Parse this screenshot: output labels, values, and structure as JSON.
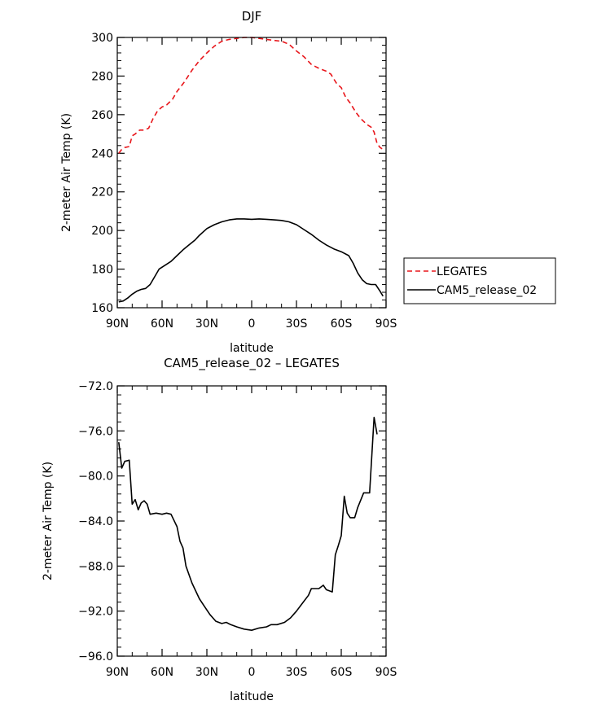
{
  "chart_data": [
    {
      "type": "line",
      "title": "DJF",
      "xlabel": "latitude",
      "ylabel": "2-meter Air Temp (K)",
      "xlim": [
        90,
        -90
      ],
      "ylim": [
        160,
        300
      ],
      "xticks": [
        {
          "value": 90,
          "label": "90N"
        },
        {
          "value": 60,
          "label": "60N"
        },
        {
          "value": 30,
          "label": "30N"
        },
        {
          "value": 0,
          "label": "0"
        },
        {
          "value": -30,
          "label": "30S"
        },
        {
          "value": -60,
          "label": "60S"
        },
        {
          "value": -90,
          "label": "90S"
        }
      ],
      "yticks": [
        {
          "value": 160,
          "label": "160"
        },
        {
          "value": 180,
          "label": "180"
        },
        {
          "value": 200,
          "label": "200"
        },
        {
          "value": 220,
          "label": "220"
        },
        {
          "value": 240,
          "label": "240"
        },
        {
          "value": 260,
          "label": "260"
        },
        {
          "value": 280,
          "label": "280"
        },
        {
          "value": 300,
          "label": "300"
        }
      ],
      "grid": false,
      "legend": "right",
      "series": [
        {
          "name": "LEGATES",
          "color": "#e8161b",
          "dash": "dashed",
          "points": [
            [
              89,
              240
            ],
            [
              87,
              242
            ],
            [
              85,
              243
            ],
            [
              82,
              243.5
            ],
            [
              80,
              249
            ],
            [
              78,
              250
            ],
            [
              75,
              252
            ],
            [
              72,
              252
            ],
            [
              69,
              253
            ],
            [
              66,
              258
            ],
            [
              63,
              262
            ],
            [
              60,
              264
            ],
            [
              57,
              265
            ],
            [
              53,
              268
            ],
            [
              50,
              272
            ],
            [
              45,
              277
            ],
            [
              40,
              283
            ],
            [
              35,
              288
            ],
            [
              30,
              292
            ],
            [
              25,
              295.5
            ],
            [
              20,
              298
            ],
            [
              15,
              299
            ],
            [
              10,
              299.5
            ],
            [
              5,
              300
            ],
            [
              0,
              300
            ],
            [
              -5,
              299.5
            ],
            [
              -10,
              299
            ],
            [
              -15,
              298.5
            ],
            [
              -20,
              298
            ],
            [
              -25,
              296.5
            ],
            [
              -30,
              293
            ],
            [
              -35,
              290
            ],
            [
              -40,
              286
            ],
            [
              -45,
              284
            ],
            [
              -50,
              282.5
            ],
            [
              -53,
              281
            ],
            [
              -57,
              276
            ],
            [
              -60,
              274
            ],
            [
              -63,
              269
            ],
            [
              -66,
              266
            ],
            [
              -70,
              261
            ],
            [
              -73,
              258
            ],
            [
              -77,
              255
            ],
            [
              -80,
              253.5
            ],
            [
              -82,
              251
            ],
            [
              -84,
              245
            ],
            [
              -86,
              243
            ],
            [
              -88,
              242
            ]
          ]
        },
        {
          "name": "CAM5_release_02",
          "color": "#000000",
          "dash": "solid",
          "points": [
            [
              89,
              163
            ],
            [
              86,
              163.5
            ],
            [
              83,
              165
            ],
            [
              80,
              167
            ],
            [
              77,
              168.5
            ],
            [
              74,
              169.5
            ],
            [
              71,
              170
            ],
            [
              68,
              172
            ],
            [
              65,
              176
            ],
            [
              62,
              180
            ],
            [
              58,
              182
            ],
            [
              54,
              184
            ],
            [
              50,
              187
            ],
            [
              46,
              190
            ],
            [
              42,
              192.5
            ],
            [
              38,
              195
            ],
            [
              35,
              197.5
            ],
            [
              30,
              201
            ],
            [
              25,
              203
            ],
            [
              20,
              204.5
            ],
            [
              15,
              205.5
            ],
            [
              10,
              206
            ],
            [
              5,
              206
            ],
            [
              0,
              205.8
            ],
            [
              -5,
              206
            ],
            [
              -10,
              205.8
            ],
            [
              -15,
              205.5
            ],
            [
              -20,
              205.2
            ],
            [
              -25,
              204.5
            ],
            [
              -30,
              203
            ],
            [
              -35,
              200.5
            ],
            [
              -40,
              198
            ],
            [
              -45,
              195
            ],
            [
              -50,
              192.5
            ],
            [
              -55,
              190.5
            ],
            [
              -60,
              189
            ],
            [
              -65,
              187
            ],
            [
              -68,
              183
            ],
            [
              -71,
              178
            ],
            [
              -74,
              174.5
            ],
            [
              -77,
              172.5
            ],
            [
              -80,
              172
            ],
            [
              -83,
              172
            ],
            [
              -86,
              168.5
            ],
            [
              -88,
              166
            ]
          ]
        }
      ]
    },
    {
      "type": "line",
      "title": "CAM5_release_02 – LEGATES",
      "xlabel": "latitude",
      "ylabel": "2-meter Air Temp (K)",
      "xlim": [
        90,
        -90
      ],
      "ylim": [
        -96,
        -72
      ],
      "xticks": [
        {
          "value": 90,
          "label": "90N"
        },
        {
          "value": 60,
          "label": "60N"
        },
        {
          "value": 30,
          "label": "30N"
        },
        {
          "value": 0,
          "label": "0"
        },
        {
          "value": -30,
          "label": "30S"
        },
        {
          "value": -60,
          "label": "60S"
        },
        {
          "value": -90,
          "label": "90S"
        }
      ],
      "yticks": [
        {
          "value": -96,
          "label": "−96.0"
        },
        {
          "value": -92,
          "label": "−92.0"
        },
        {
          "value": -88,
          "label": "−88.0"
        },
        {
          "value": -84,
          "label": "−84.0"
        },
        {
          "value": -80,
          "label": "−80.0"
        },
        {
          "value": -76,
          "label": "−76.0"
        },
        {
          "value": -72,
          "label": "−72.0"
        }
      ],
      "grid": false,
      "legend": "none",
      "series": [
        {
          "color": "#000000",
          "dash": "solid",
          "points": [
            [
              89,
              -77
            ],
            [
              87,
              -79.3
            ],
            [
              85,
              -78.7
            ],
            [
              82,
              -78.6
            ],
            [
              80,
              -82.5
            ],
            [
              78,
              -82.1
            ],
            [
              76,
              -83
            ],
            [
              74,
              -82.4
            ],
            [
              72,
              -82.2
            ],
            [
              70,
              -82.5
            ],
            [
              68,
              -83.4
            ],
            [
              64,
              -83.3
            ],
            [
              60,
              -83.4
            ],
            [
              57,
              -83.3
            ],
            [
              54,
              -83.4
            ],
            [
              50,
              -84.5
            ],
            [
              48,
              -85.8
            ],
            [
              46,
              -86.4
            ],
            [
              44,
              -88
            ],
            [
              40,
              -89.5
            ],
            [
              35,
              -90.9
            ],
            [
              32,
              -91.5
            ],
            [
              28,
              -92.3
            ],
            [
              24,
              -92.9
            ],
            [
              20,
              -93.1
            ],
            [
              17,
              -93.0
            ],
            [
              14,
              -93.2
            ],
            [
              10,
              -93.4
            ],
            [
              5,
              -93.6
            ],
            [
              0,
              -93.7
            ],
            [
              -5,
              -93.5
            ],
            [
              -10,
              -93.4
            ],
            [
              -13,
              -93.2
            ],
            [
              -17,
              -93.2
            ],
            [
              -22,
              -93.0
            ],
            [
              -26,
              -92.6
            ],
            [
              -30,
              -92.0
            ],
            [
              -34,
              -91.3
            ],
            [
              -38,
              -90.6
            ],
            [
              -40,
              -90.0
            ],
            [
              -45,
              -90.0
            ],
            [
              -48,
              -89.7
            ],
            [
              -50,
              -90.1
            ],
            [
              -54,
              -90.3
            ],
            [
              -56,
              -87.0
            ],
            [
              -58,
              -86.2
            ],
            [
              -60,
              -85.3
            ],
            [
              -62,
              -81.8
            ],
            [
              -64,
              -83.3
            ],
            [
              -66,
              -83.7
            ],
            [
              -69,
              -83.7
            ],
            [
              -71,
              -82.8
            ],
            [
              -75,
              -81.5
            ],
            [
              -79,
              -81.5
            ],
            [
              -82,
              -74.8
            ],
            [
              -84,
              -76.3
            ]
          ]
        }
      ]
    }
  ]
}
